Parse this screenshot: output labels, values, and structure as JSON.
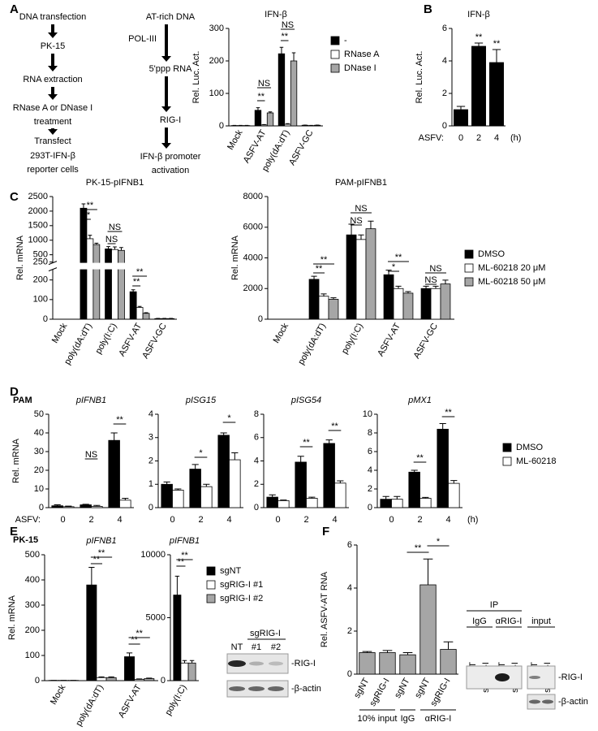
{
  "panel_labels": [
    "A",
    "B",
    "C",
    "D",
    "E",
    "F"
  ],
  "row_labels": {
    "D": "PAM",
    "E": "PK-15"
  },
  "flow": {
    "left": [
      [
        "DNA transfection"
      ],
      [
        "PK-15"
      ],
      [
        "RNA extraction"
      ],
      [
        "RNase A or DNase I",
        "treatment"
      ],
      [
        "Transfect",
        "293T-IFN-β",
        "reporter cells"
      ]
    ],
    "right": [
      [
        "AT-rich DNA"
      ],
      [
        "5'ppp RNA"
      ],
      [
        "RIG-I"
      ],
      [
        "IFN-β promoter",
        "activation"
      ]
    ],
    "arrow_label": "POL-III"
  },
  "blot_E": {
    "group": "sgRIG-I",
    "lanes": [
      "NT",
      "#1",
      "#2"
    ],
    "bands": [
      "-RIG-I",
      "-β-actin"
    ]
  },
  "blot_F": {
    "ip": "IP",
    "groups": [
      "IgG",
      "αRIG-I",
      "input"
    ],
    "lanes": [
      "sgNT",
      "sgRIG-I",
      "sgNT",
      "sgRIG-I",
      "sgNT",
      "sgRIG-I"
    ],
    "bands": [
      "-RIG-I",
      "-β-actin"
    ]
  },
  "chart_data": [
    {
      "type": "bar",
      "title": "IFN-β",
      "ylabel": "Rel. Luc. Act.",
      "categories": [
        "Mock",
        "ASFV-AT",
        "poly(dA:dT)",
        "ASFV-GC"
      ],
      "series": [
        {
          "name": "-",
          "color": "#000000",
          "values": [
            1,
            48,
            222,
            2
          ],
          "errors": [
            0.5,
            8,
            20,
            0.5
          ]
        },
        {
          "name": "RNase A",
          "color": "#ffffff",
          "values": [
            1,
            3,
            5,
            1
          ],
          "errors": [
            0.5,
            1,
            2,
            0.5
          ]
        },
        {
          "name": "DNase I",
          "color": "#a6a6a6",
          "values": [
            1,
            40,
            200,
            2
          ],
          "errors": [
            0.5,
            3,
            25,
            0.5
          ]
        }
      ],
      "ylim": [
        0,
        300
      ],
      "yticks": [
        0,
        100,
        200,
        300
      ],
      "annotations": [
        "NS",
        "**",
        "NS",
        "**"
      ]
    },
    {
      "type": "bar",
      "title": "IFN-β",
      "ylabel": "Rel. Luc. Act.",
      "xlabel": "ASFV:",
      "xunit": "(h)",
      "categories": [
        "0",
        "2",
        "4"
      ],
      "series": [
        {
          "color": "#000000",
          "values": [
            1,
            4.9,
            3.9
          ],
          "errors": [
            0.2,
            0.2,
            0.8
          ]
        }
      ],
      "ylim": [
        0,
        6
      ],
      "yticks": [
        0,
        2,
        4,
        6
      ],
      "annotations": [
        "**",
        "**"
      ]
    },
    {
      "type": "bar",
      "title": "PK-15-pIFNB1",
      "ylabel": "Rel. mRNA",
      "categories": [
        "Mock",
        "poly(dA:dT)",
        "poly(I:C)",
        "ASFV-AT",
        "ASFV-GC"
      ],
      "series": [
        {
          "color": "#000000",
          "values": [
            0,
            2100,
            700,
            140,
            3
          ],
          "errors": [
            0,
            150,
            80,
            10,
            1
          ]
        },
        {
          "color": "#ffffff",
          "values": [
            0,
            1050,
            680,
            60,
            3
          ],
          "errors": [
            0,
            120,
            90,
            5,
            1
          ]
        },
        {
          "color": "#a6a6a6",
          "values": [
            0,
            850,
            650,
            30,
            3
          ],
          "errors": [
            0,
            50,
            100,
            3,
            1
          ]
        }
      ],
      "ylim": [
        0,
        2500
      ],
      "ybreak": 250,
      "yticks": [
        0,
        100,
        200,
        250,
        500,
        1000,
        1500,
        2000,
        2500
      ],
      "annotations": [
        "**",
        "**",
        "NS",
        "NS",
        "**",
        "**"
      ]
    },
    {
      "type": "bar",
      "title": "PAM-pIFNB1",
      "ylabel": "Rel. mRNA",
      "categories": [
        "Mock",
        "poly(dA:dT)",
        "poly(I:C)",
        "ASFV-AT",
        "ASFV-GC"
      ],
      "series": [
        {
          "name": "DMSO",
          "color": "#000000",
          "values": [
            0,
            2600,
            5500,
            2900,
            2000
          ],
          "errors": [
            0,
            200,
            700,
            300,
            150
          ]
        },
        {
          "name": "ML-60218 20 μM",
          "color": "#ffffff",
          "values": [
            0,
            1500,
            5200,
            2000,
            2000
          ],
          "errors": [
            0,
            150,
            300,
            150,
            150
          ]
        },
        {
          "name": "ML-60218 50 μM",
          "color": "#a6a6a6",
          "values": [
            0,
            1300,
            5900,
            1700,
            2300
          ],
          "errors": [
            0,
            100,
            500,
            100,
            250
          ]
        }
      ],
      "ylim": [
        0,
        8000
      ],
      "yticks": [
        0,
        2000,
        4000,
        6000,
        8000
      ],
      "annotations": [
        "**",
        "**",
        "NS",
        "NS",
        "**",
        "*",
        "NS",
        "NS"
      ]
    },
    {
      "type": "bar",
      "title": "pIFNB1",
      "ylabel": "Rel. mRNA",
      "xlabel": "ASFV:",
      "categories": [
        "0",
        "2",
        "4"
      ],
      "series": [
        {
          "color": "#000000",
          "values": [
            1,
            1.5,
            36
          ],
          "errors": [
            0.5,
            0.3,
            4
          ]
        },
        {
          "color": "#ffffff",
          "values": [
            0.5,
            0.7,
            4
          ],
          "errors": [
            0.3,
            0.5,
            1
          ]
        }
      ],
      "ylim": [
        0,
        50
      ],
      "yticks": [
        0,
        10,
        20,
        30,
        40,
        50
      ],
      "annotations": [
        "NS",
        "**"
      ]
    },
    {
      "type": "bar",
      "title": "pISG15",
      "categories": [
        "0",
        "2",
        "4"
      ],
      "series": [
        {
          "color": "#000000",
          "values": [
            1,
            1.65,
            3.1
          ],
          "errors": [
            0.1,
            0.2,
            0.1
          ]
        },
        {
          "color": "#ffffff",
          "values": [
            0.75,
            0.9,
            2.05
          ],
          "errors": [
            0.05,
            0.1,
            0.3
          ]
        }
      ],
      "ylim": [
        0,
        4
      ],
      "yticks": [
        0,
        1,
        2,
        3,
        4
      ],
      "annotations": [
        "*",
        "*"
      ]
    },
    {
      "type": "bar",
      "title": "pISG54",
      "categories": [
        "0",
        "2",
        "4"
      ],
      "series": [
        {
          "color": "#000000",
          "values": [
            0.9,
            3.9,
            5.5
          ],
          "errors": [
            0.2,
            0.5,
            0.3
          ]
        },
        {
          "color": "#ffffff",
          "values": [
            0.6,
            0.8,
            2.1
          ],
          "errors": [
            0.05,
            0.1,
            0.2
          ]
        }
      ],
      "ylim": [
        0,
        8
      ],
      "yticks": [
        0,
        2,
        4,
        6,
        8
      ],
      "annotations": [
        "**",
        "**"
      ]
    },
    {
      "type": "bar",
      "title": "pMX1",
      "xunit": "(h)",
      "categories": [
        "0",
        "2",
        "4"
      ],
      "series": [
        {
          "name": "DMSO",
          "color": "#000000",
          "values": [
            0.9,
            3.8,
            8.4
          ],
          "errors": [
            0.3,
            0.2,
            0.6
          ]
        },
        {
          "name": "ML-60218",
          "color": "#ffffff",
          "values": [
            0.9,
            1.0,
            2.6
          ],
          "errors": [
            0.3,
            0.1,
            0.3
          ]
        }
      ],
      "ylim": [
        0,
        10
      ],
      "yticks": [
        0,
        2,
        4,
        6,
        8,
        10
      ],
      "annotations": [
        "**",
        "**"
      ]
    },
    {
      "type": "bar",
      "title": "pIFNB1",
      "ylabel": "Rel. mRNA",
      "categories": [
        "Mock",
        "poly(dA:dT)",
        "ASFV-AT"
      ],
      "series": [
        {
          "name": "sgNT",
          "color": "#000000",
          "values": [
            1,
            380,
            95
          ],
          "errors": [
            0,
            70,
            15
          ]
        },
        {
          "name": "sgRIG-I #1",
          "color": "#ffffff",
          "values": [
            1,
            12,
            5
          ],
          "errors": [
            0,
            3,
            2
          ]
        },
        {
          "name": "sgRIG-I #2",
          "color": "#a6a6a6",
          "values": [
            1,
            12,
            8
          ],
          "errors": [
            0,
            3,
            2
          ]
        }
      ],
      "ylim": [
        0,
        500
      ],
      "yticks": [
        0,
        100,
        200,
        300,
        400,
        500
      ],
      "annotations": [
        "**",
        "**",
        "**",
        "**"
      ]
    },
    {
      "type": "bar",
      "title": "pIFNB1",
      "categories": [
        "poly(I:C)"
      ],
      "series": [
        {
          "color": "#000000",
          "values": [
            6800
          ],
          "errors": [
            1500
          ]
        },
        {
          "color": "#ffffff",
          "values": [
            1400
          ],
          "errors": [
            200
          ]
        },
        {
          "color": "#a6a6a6",
          "values": [
            1400
          ],
          "errors": [
            200
          ]
        }
      ],
      "ylim": [
        0,
        10000
      ],
      "yticks": [
        0,
        5000,
        10000
      ],
      "annotations": [
        "**",
        "**"
      ]
    },
    {
      "type": "bar",
      "ylabel": "Rel. ASFV-AT RNA",
      "categories": [
        "sgNT",
        "sgRIG-I",
        "sgNT",
        "sgNT",
        "sgRIG-I"
      ],
      "group_labels": [
        "10% input",
        "IgG",
        "αRIG-I"
      ],
      "series": [
        {
          "color": "#a6a6a6",
          "values": [
            1,
            1,
            0.9,
            4.15,
            1.15
          ],
          "errors": [
            0.05,
            0.1,
            0.1,
            1.2,
            0.35
          ]
        }
      ],
      "ylim": [
        0,
        6
      ],
      "yticks": [
        0,
        2,
        4,
        6
      ],
      "annotations": [
        "**",
        "*"
      ]
    }
  ]
}
